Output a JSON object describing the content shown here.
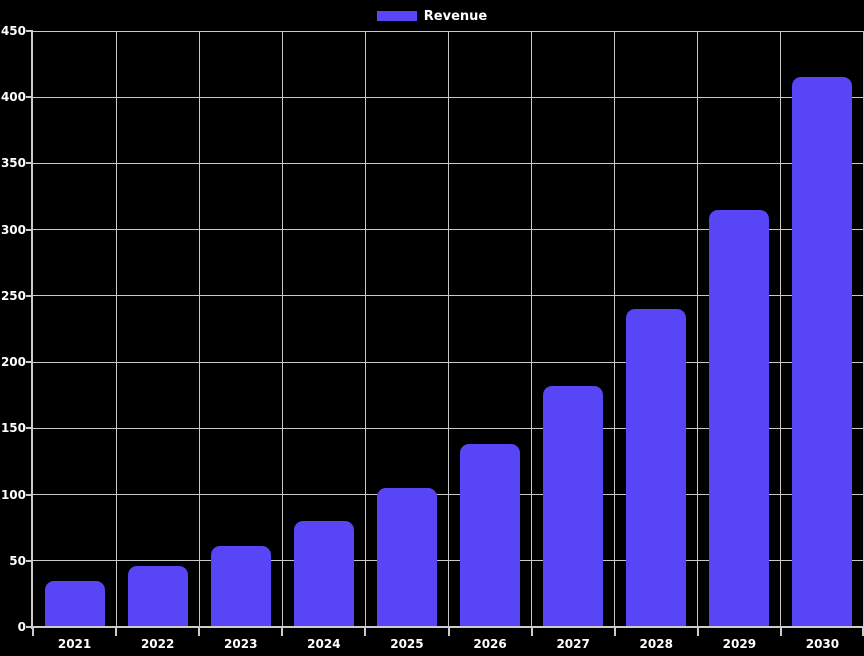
{
  "chart_data": {
    "type": "bar",
    "title": "",
    "xlabel": "",
    "ylabel": "",
    "categories": [
      "2021",
      "2022",
      "2023",
      "2024",
      "2025",
      "2026",
      "2027",
      "2028",
      "2029",
      "2030"
    ],
    "series": [
      {
        "name": "Revenue",
        "values": [
          35,
          46,
          61,
          80,
          105,
          138,
          182,
          240,
          315,
          415
        ]
      }
    ],
    "ylim": [
      0,
      450
    ],
    "y_ticks": [
      0,
      50,
      100,
      150,
      200,
      250,
      300,
      350,
      400,
      450
    ],
    "grid": true,
    "legend_position": "top-center",
    "colors": {
      "bar": "#5845f5",
      "background": "#000000",
      "gridline": "#c8c8c8",
      "axis": "#cccccc",
      "text": "#ffffff"
    }
  }
}
